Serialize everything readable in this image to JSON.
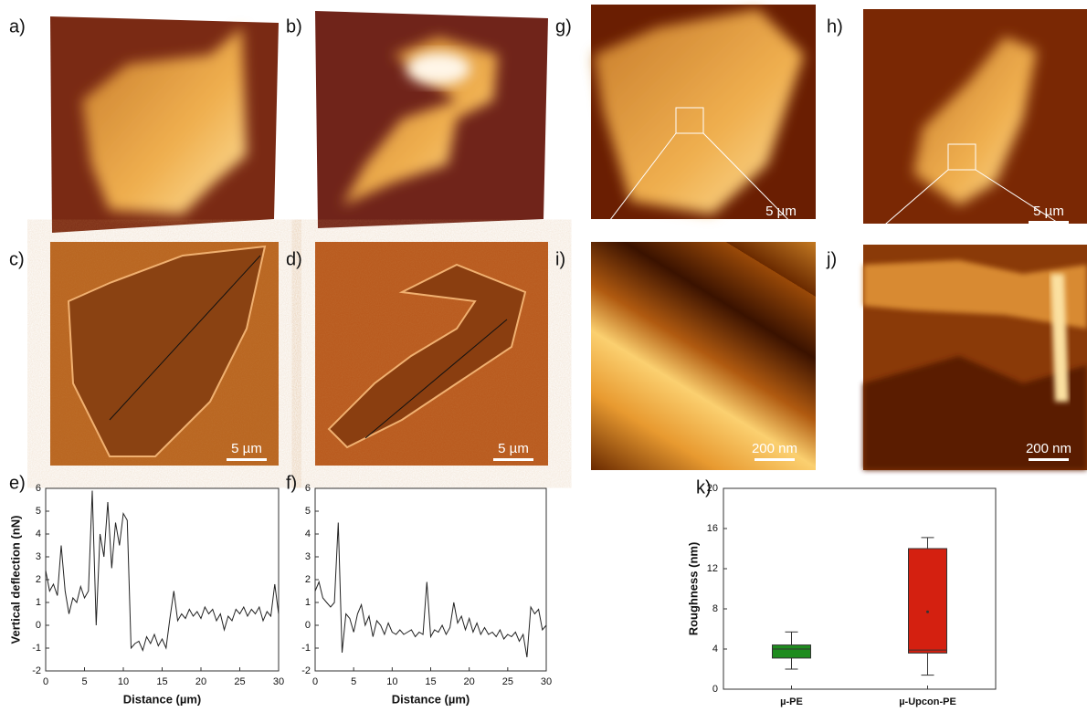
{
  "panel_labels": [
    "a)",
    "b)",
    "c)",
    "d)",
    "e)",
    "f)",
    "g)",
    "h)",
    "i)",
    "j)",
    "k)"
  ],
  "scale_bars": [
    "5 µm",
    "5 µm",
    "5 µm",
    "5 µm",
    "200 nm",
    "200 nm"
  ],
  "chart_data": [
    {
      "type": "line",
      "x_label": "Distance (µm)",
      "y_label": "Vertical deflection (nN)",
      "color": "#222222",
      "xlim": [
        0,
        30
      ],
      "ylim": [
        -2,
        6
      ],
      "xticks": [
        0,
        5,
        10,
        15,
        20,
        25,
        30
      ],
      "yticks": [
        -2,
        -1,
        0,
        1,
        2,
        3,
        4,
        5,
        6
      ],
      "x": [
        0,
        0.5,
        1,
        1.5,
        2,
        2.5,
        3,
        3.5,
        4,
        4.5,
        5,
        5.5,
        6,
        6.5,
        7,
        7.5,
        8,
        8.5,
        9,
        9.5,
        10,
        10.5,
        11,
        11.5,
        12,
        12.5,
        13,
        13.5,
        14,
        14.5,
        15,
        15.5,
        16,
        16.5,
        17,
        17.5,
        18,
        18.5,
        19,
        19.5,
        20,
        20.5,
        21,
        21.5,
        22,
        22.5,
        23,
        23.5,
        24,
        24.5,
        25,
        25.5,
        26,
        26.5,
        27,
        27.5,
        28,
        28.5,
        29,
        29.5,
        30
      ],
      "values": [
        2.4,
        1.5,
        1.8,
        1.3,
        3.5,
        1.5,
        0.5,
        1.2,
        1.0,
        1.7,
        1.2,
        1.5,
        5.9,
        0,
        4.0,
        3.0,
        5.4,
        2.5,
        4.5,
        3.5,
        4.9,
        4.6,
        -1.0,
        -0.8,
        -0.7,
        -1.1,
        -0.5,
        -0.8,
        -0.4,
        -0.9,
        -0.6,
        -1.0,
        0.3,
        1.5,
        0.2,
        0.5,
        0.3,
        0.7,
        0.4,
        0.6,
        0.3,
        0.8,
        0.5,
        0.7,
        0.2,
        0.5,
        -0.2,
        0.4,
        0.2,
        0.7,
        0.5,
        0.8,
        0.4,
        0.7,
        0.5,
        0.8,
        0.2,
        0.6,
        0.4,
        1.8,
        0.5
      ]
    },
    {
      "type": "line",
      "x_label": "Distance (µm)",
      "color": "#222222",
      "xlim": [
        0,
        30
      ],
      "ylim": [
        -2,
        6
      ],
      "xticks": [
        0,
        5,
        10,
        15,
        20,
        25,
        30
      ],
      "yticks": [
        -2,
        -1,
        0,
        1,
        2,
        3,
        4,
        5,
        6
      ],
      "x": [
        0,
        0.5,
        1,
        1.5,
        2,
        2.5,
        3,
        3.5,
        4,
        4.5,
        5,
        5.5,
        6,
        6.5,
        7,
        7.5,
        8,
        8.5,
        9,
        9.5,
        10,
        10.5,
        11,
        11.5,
        12,
        12.5,
        13,
        13.5,
        14,
        14.5,
        15,
        15.5,
        16,
        16.5,
        17,
        17.5,
        18,
        18.5,
        19,
        19.5,
        20,
        20.5,
        21,
        21.5,
        22,
        22.5,
        23,
        23.5,
        24,
        24.5,
        25,
        25.5,
        26,
        26.5,
        27,
        27.5,
        28,
        28.5,
        29,
        29.5,
        30
      ],
      "values": [
        1.5,
        1.9,
        1.2,
        1.0,
        0.8,
        1.0,
        4.5,
        -1.2,
        0.5,
        0.3,
        -0.3,
        0.5,
        0.9,
        0.0,
        0.4,
        -0.5,
        0.2,
        0.0,
        -0.4,
        0.1,
        -0.3,
        -0.4,
        -0.2,
        -0.4,
        -0.3,
        -0.2,
        -0.5,
        -0.3,
        -0.4,
        1.9,
        -0.5,
        -0.2,
        -0.3,
        0.0,
        -0.4,
        -0.1,
        1.0,
        0.1,
        0.4,
        -0.2,
        0.3,
        -0.3,
        0.1,
        -0.4,
        -0.1,
        -0.4,
        -0.3,
        -0.5,
        -0.2,
        -0.6,
        -0.4,
        -0.5,
        -0.3,
        -0.7,
        -0.4,
        -1.4,
        0.8,
        0.5,
        0.7,
        -0.2,
        0.0
      ]
    },
    {
      "type": "box",
      "y_label": "Roughness (nm)",
      "categories": [
        "µ-PE",
        "µ-Upcon-PE"
      ],
      "ylim": [
        0,
        20
      ],
      "yticks": [
        0,
        4,
        8,
        12,
        16,
        20
      ],
      "boxes": [
        {
          "min": 2.0,
          "q1": 3.1,
          "median": 4.0,
          "q3": 4.4,
          "max": 5.7,
          "color": "#1e8c1e"
        },
        {
          "min": 1.4,
          "q1": 3.6,
          "median": 3.9,
          "q3": 14.0,
          "max": 15.1,
          "mean": 7.7,
          "color": "#d42010"
        }
      ]
    }
  ]
}
